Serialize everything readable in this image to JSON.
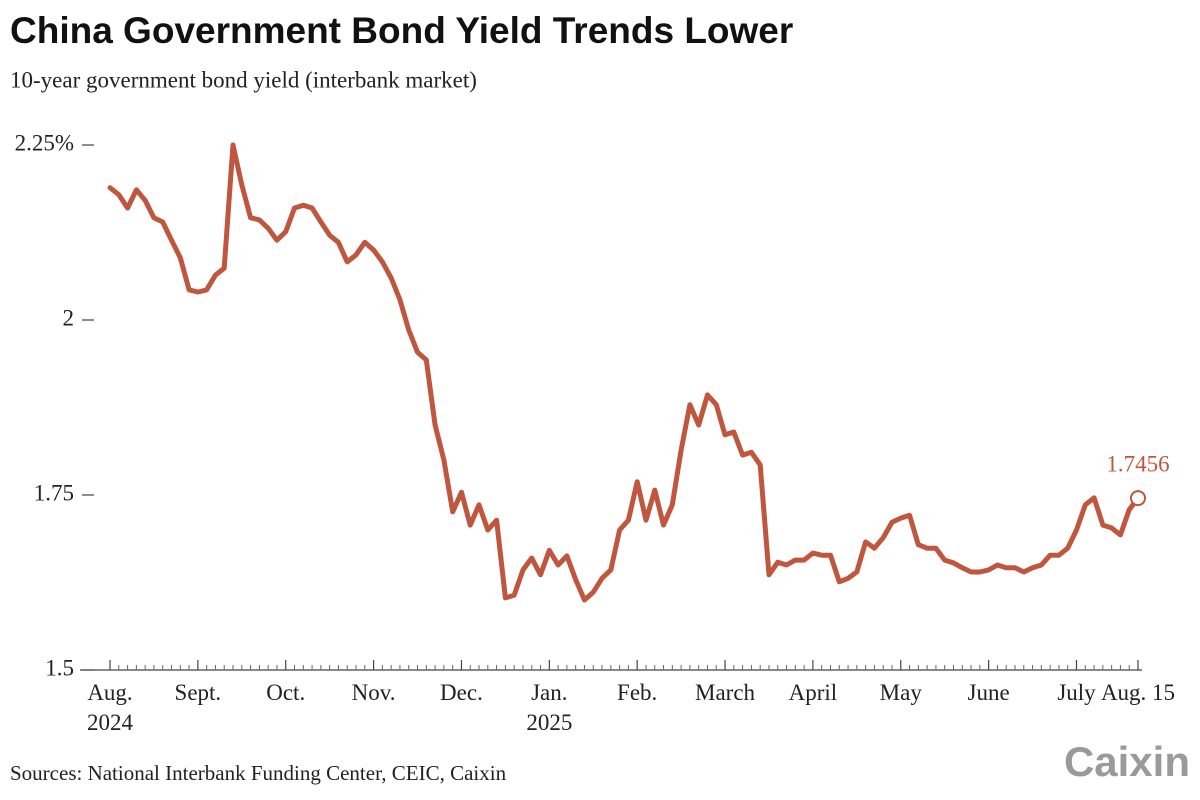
{
  "chart_data": {
    "type": "line",
    "title": "China Government Bond Yield Trends Lower",
    "subtitle": "10-year government bond yield (interbank market)",
    "source": "Sources: National Interbank Funding Center, CEIC, Caixin",
    "logo": "Caixin",
    "categories": [
      "Aug.\n2024",
      null,
      null,
      null,
      null,
      null,
      null,
      null,
      null,
      null,
      "Sept.",
      null,
      null,
      null,
      null,
      null,
      null,
      null,
      null,
      null,
      "Oct.",
      null,
      null,
      null,
      null,
      null,
      null,
      null,
      null,
      null,
      "Nov.",
      null,
      null,
      null,
      null,
      null,
      null,
      null,
      null,
      null,
      "Dec.",
      null,
      null,
      null,
      null,
      null,
      null,
      null,
      null,
      null,
      "Jan.\n2025",
      null,
      null,
      null,
      null,
      null,
      null,
      null,
      null,
      null,
      "Feb.",
      null,
      null,
      null,
      null,
      null,
      null,
      null,
      null,
      null,
      "March",
      null,
      null,
      null,
      null,
      null,
      null,
      null,
      null,
      null,
      "April",
      null,
      null,
      null,
      null,
      null,
      null,
      null,
      null,
      null,
      "May",
      null,
      null,
      null,
      null,
      null,
      null,
      null,
      null,
      null,
      "June",
      null,
      null,
      null,
      null,
      null,
      null,
      null,
      null,
      null,
      "July",
      null,
      null,
      null,
      null,
      null,
      null,
      "Aug. 15"
    ],
    "series": [
      {
        "name": "10-year government bond yield",
        "color": "#c0563e",
        "values": [
          2.189,
          2.179,
          2.16,
          2.186,
          2.171,
          2.146,
          2.14,
          2.114,
          2.089,
          2.043,
          2.04,
          2.043,
          2.064,
          2.074,
          2.25,
          2.193,
          2.146,
          2.143,
          2.131,
          2.114,
          2.126,
          2.16,
          2.164,
          2.16,
          2.14,
          2.121,
          2.111,
          2.083,
          2.093,
          2.111,
          2.1,
          2.083,
          2.06,
          2.029,
          1.986,
          1.954,
          1.943,
          1.85,
          1.8,
          1.726,
          1.754,
          1.707,
          1.736,
          1.7,
          1.714,
          1.603,
          1.607,
          1.643,
          1.66,
          1.636,
          1.671,
          1.65,
          1.663,
          1.629,
          1.6,
          1.611,
          1.631,
          1.643,
          1.7,
          1.714,
          1.769,
          1.714,
          1.757,
          1.707,
          1.736,
          1.814,
          1.879,
          1.85,
          1.893,
          1.879,
          1.836,
          1.84,
          1.807,
          1.811,
          1.793,
          1.636,
          1.654,
          1.65,
          1.657,
          1.657,
          1.667,
          1.664,
          1.664,
          1.626,
          1.631,
          1.64,
          1.683,
          1.674,
          1.689,
          1.711,
          1.717,
          1.721,
          1.679,
          1.674,
          1.674,
          1.657,
          1.653,
          1.646,
          1.64,
          1.64,
          1.643,
          1.65,
          1.646,
          1.646,
          1.64,
          1.646,
          1.65,
          1.664,
          1.664,
          1.674,
          1.7,
          1.736,
          1.746,
          1.707,
          1.703,
          1.693,
          1.729,
          1.7456
        ]
      }
    ],
    "label_last": true,
    "ylim": [
      1.5,
      2.25
    ],
    "yticks": [
      1.5,
      1.75,
      2,
      {
        "value": 2.25,
        "label": "2.25%"
      }
    ],
    "grid": false
  }
}
